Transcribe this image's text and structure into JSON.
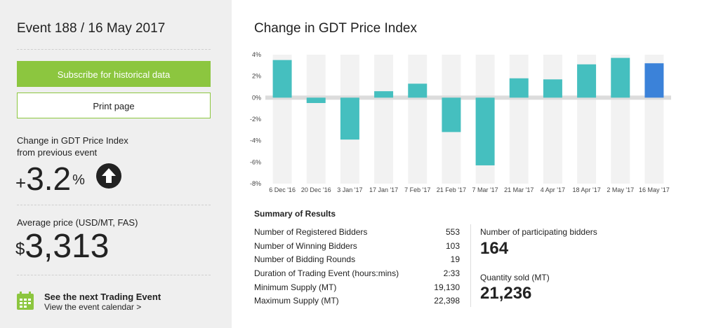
{
  "sidebar": {
    "event_title": "Event 188 / 16 May 2017",
    "subscribe_label": "Subscribe for historical data",
    "print_label": "Print page",
    "change_label_line1": "Change in GDT Price Index",
    "change_label_line2": "from previous event",
    "change_sign": "+",
    "change_value": "3.2",
    "change_unit": "%",
    "change_direction_icon": "arrow-up-icon",
    "avg_label": "Average price (USD/MT, FAS)",
    "avg_currency": "$",
    "avg_value": "3,313",
    "next_event_title": "See the next Trading Event",
    "next_event_link": "View the event calendar >",
    "calendar_icon": "calendar-icon"
  },
  "chart_title": "Change in GDT Price Index",
  "chart_data": {
    "type": "bar",
    "categories": [
      "6 Dec '16",
      "20 Dec '16",
      "3 Jan '17",
      "17 Jan '17",
      "7 Feb '17",
      "21 Feb '17",
      "7 Mar '17",
      "21 Mar '17",
      "4 Apr '17",
      "18 Apr '17",
      "2 May '17",
      "16 May '17"
    ],
    "values": [
      3.5,
      -0.5,
      -3.9,
      0.6,
      1.3,
      -3.2,
      -6.3,
      1.8,
      1.7,
      3.1,
      3.7,
      3.2
    ],
    "highlight_index": 11,
    "colors": {
      "bar": "#45bfbf",
      "highlight": "#3b82d9",
      "column_bg": "#f2f2f2",
      "zero_band": "#dcdcdc"
    },
    "ylim": [
      -8,
      4
    ],
    "yticks": [
      4,
      2,
      0,
      -2,
      -4,
      -6,
      -8
    ],
    "ytick_labels": [
      "4%",
      "2%",
      "0%",
      "-2%",
      "-4%",
      "-6%",
      "-8%"
    ],
    "xlabel": "",
    "ylabel": "",
    "grid": false,
    "legend": "none"
  },
  "summary": {
    "title": "Summary of Results",
    "rows": [
      {
        "label": "Number of Registered Bidders",
        "value": "553"
      },
      {
        "label": "Number of Winning Bidders",
        "value": "103"
      },
      {
        "label": "Number of Bidding Rounds",
        "value": "19"
      },
      {
        "label": "Duration of Trading Event (hours:mins)",
        "value": "2:33"
      },
      {
        "label": "Minimum Supply (MT)",
        "value": "19,130"
      },
      {
        "label": "Maximum Supply (MT)",
        "value": "22,398"
      }
    ],
    "participating_label": "Number of participating bidders",
    "participating_value": "164",
    "quantity_label": "Quantity sold (MT)",
    "quantity_value": "21,236"
  },
  "colors": {
    "accent_green": "#8cc63f",
    "sidebar_bg": "#efefef"
  }
}
